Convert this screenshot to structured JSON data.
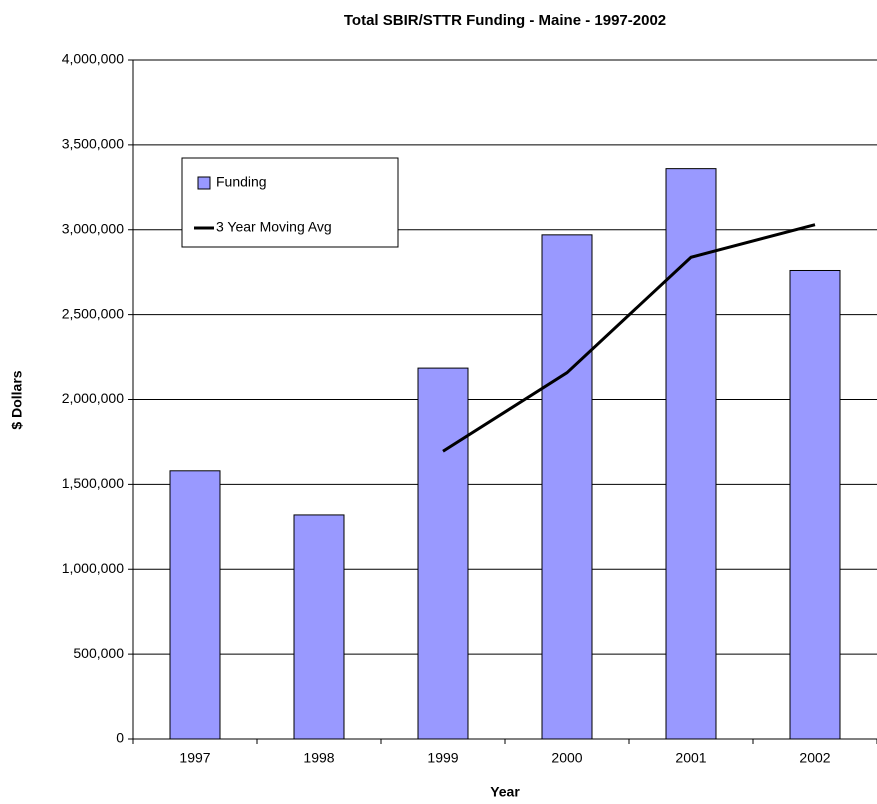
{
  "chart_data": {
    "type": "bar",
    "title": "Total SBIR/STTR Funding - Maine - 1997-2002",
    "x_label": "Year",
    "y_label": "$ Dollars",
    "categories": [
      "1997",
      "1998",
      "1999",
      "2000",
      "2001",
      "2002"
    ],
    "series": [
      {
        "name": "Funding",
        "type": "bar",
        "color": "#9999ff",
        "values": [
          1580000,
          1320000,
          2185000,
          2970000,
          3360000,
          2760000
        ]
      },
      {
        "name": "3 Year Moving Avg",
        "type": "line",
        "color": "#000000",
        "values": [
          null,
          null,
          1695000,
          2158000,
          2838000,
          3030000
        ]
      }
    ],
    "ylim": [
      0,
      4000000
    ],
    "yticks": [
      0,
      {
        "value": 500000,
        "label": "500,000"
      },
      {
        "value": 1000000,
        "label": "1,000,000"
      },
      {
        "value": 1500000,
        "label": "1,500,000"
      },
      {
        "value": 2000000,
        "label": "2,000,000"
      },
      {
        "value": 2500000,
        "label": "2,500,000"
      },
      {
        "value": 3000000,
        "label": "3,000,000"
      },
      {
        "value": 3500000,
        "label": "3,500,000"
      },
      {
        "value": 4000000,
        "label": "4,000,000"
      }
    ],
    "grid": true,
    "legend": "upper left"
  }
}
